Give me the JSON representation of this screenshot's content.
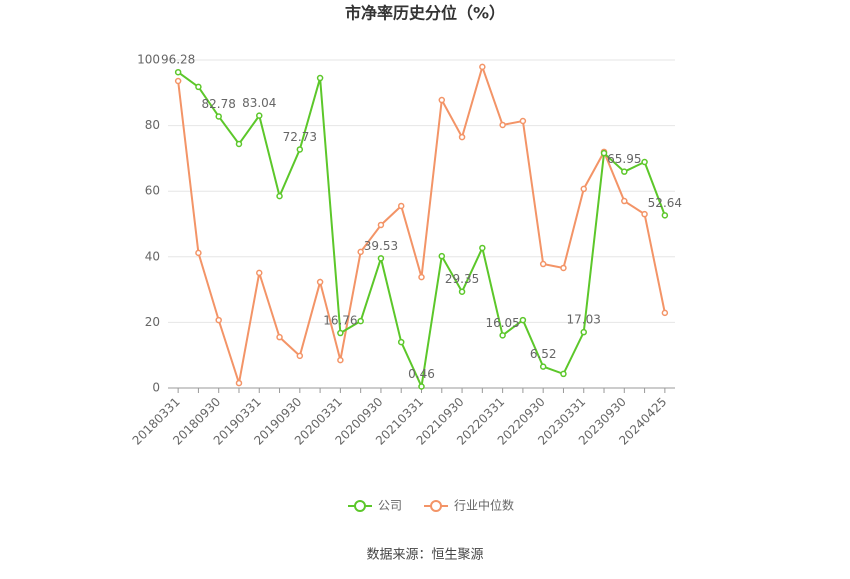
{
  "chart_data": {
    "type": "line",
    "title": "市净率历史分位（%）",
    "source": "数据来源：恒生聚源",
    "categories": [
      "20180331",
      null,
      "20180930",
      null,
      "20190331",
      null,
      "20190930",
      null,
      "20200331",
      null,
      "20200930",
      null,
      "20210331",
      null,
      "20210930",
      null,
      "20220331",
      null,
      "20220930",
      null,
      "20230331",
      null,
      "20230930",
      null,
      "20240425"
    ],
    "series": [
      {
        "name": "公司",
        "color": "#5cc72a",
        "values": [
          96.28,
          91.8,
          82.78,
          74.4,
          83.04,
          58.5,
          72.73,
          94.5,
          16.76,
          20.4,
          39.53,
          14.0,
          0.46,
          40.2,
          29.35,
          42.7,
          16.05,
          20.7,
          6.52,
          4.3,
          17.03,
          71.6,
          65.95,
          68.9,
          52.64
        ],
        "value_labels": [
          "96.28",
          null,
          "82.78",
          null,
          "83.04",
          null,
          "72.73",
          null,
          "16.76",
          null,
          "39.53",
          null,
          "0.46",
          null,
          "29.35",
          null,
          "16.05",
          null,
          "6.52",
          null,
          "17.03",
          null,
          "65.95",
          null,
          "52.64"
        ]
      },
      {
        "name": "行业中位数",
        "color": "#f39467",
        "values": [
          93.6,
          41.2,
          20.7,
          1.5,
          35.1,
          15.5,
          9.8,
          32.3,
          8.5,
          41.5,
          49.7,
          55.5,
          33.8,
          87.8,
          76.5,
          97.9,
          80.2,
          81.4,
          37.8,
          36.6,
          60.7,
          72.0,
          57.0,
          53.0,
          22.9
        ]
      }
    ],
    "ylim": [
      0,
      100
    ],
    "yticks": [
      0,
      20,
      40,
      60,
      80,
      100
    ],
    "grid": true,
    "legend": "bottom"
  }
}
